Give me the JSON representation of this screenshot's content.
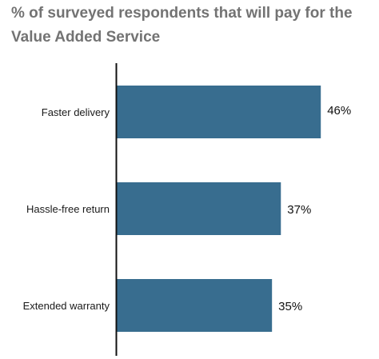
{
  "chart_data": {
    "type": "bar",
    "orientation": "horizontal",
    "title": "% of surveyed respondents that will pay for the Value Added Service",
    "categories": [
      "Faster delivery",
      "Hassle-free return",
      "Extended warranty"
    ],
    "values": [
      46,
      37,
      35
    ],
    "value_labels": [
      "46%",
      "37%",
      "35%"
    ],
    "xlim": [
      0,
      50
    ],
    "grid": false,
    "legend": "none",
    "bar_color": "#386d8f",
    "axis_color": "#111111"
  }
}
